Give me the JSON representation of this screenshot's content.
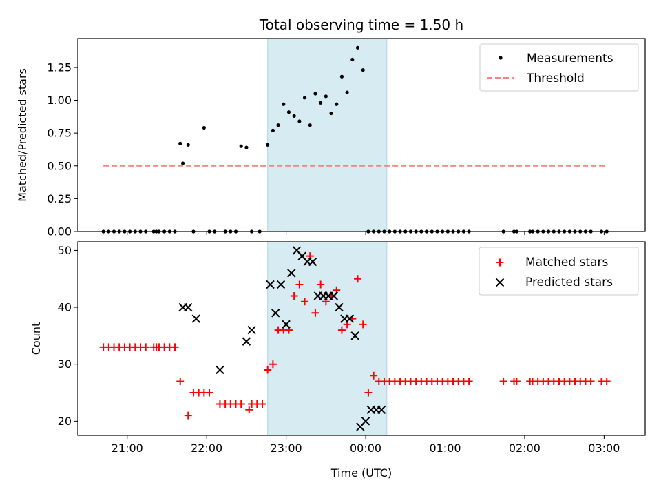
{
  "title": "Total observing time = 1.50 h",
  "xlabel": "Time (UTC)",
  "x_ticks": [
    "21:00",
    "22:00",
    "23:00",
    "00:00",
    "01:00",
    "02:00",
    "03:00"
  ],
  "colors": {
    "matched": "#ff0000",
    "predicted": "#000000",
    "threshold": "#ff7f7f",
    "span": "#add8e6"
  },
  "chart_data": [
    {
      "type": "scatter",
      "title": "Total observing time = 1.50 h",
      "ylabel": "Matched/Predicted stars",
      "ylim": [
        0,
        1.47
      ],
      "y_ticks": [
        "0.00",
        "0.25",
        "0.50",
        "0.75",
        "1.00",
        "1.25"
      ],
      "x_ticks": [
        "21:00",
        "22:00",
        "23:00",
        "00:00",
        "01:00",
        "02:00",
        "03:00"
      ],
      "highlight_span": [
        "22:46",
        "00:16"
      ],
      "legend_position": "top-right",
      "series": [
        {
          "name": "Measurements",
          "x": [
            "20:42",
            "20:46",
            "20:50",
            "20:54",
            "20:58",
            "21:02",
            "21:06",
            "21:10",
            "21:14",
            "21:20",
            "21:22",
            "21:24",
            "21:28",
            "21:32",
            "21:36",
            "21:40",
            "21:42",
            "21:46",
            "21:50",
            "21:58",
            "22:02",
            "22:06",
            "22:14",
            "22:18",
            "22:22",
            "22:26",
            "22:30",
            "22:34",
            "22:40",
            "22:46",
            "22:50",
            "22:54",
            "22:58",
            "23:02",
            "23:06",
            "23:10",
            "23:14",
            "23:18",
            "23:22",
            "23:26",
            "23:30",
            "23:34",
            "23:38",
            "23:42",
            "23:46",
            "23:50",
            "23:54",
            "23:58",
            "00:02",
            "00:06",
            "00:10",
            "00:14",
            "00:18",
            "00:22",
            "00:26",
            "00:30",
            "00:34",
            "00:38",
            "00:42",
            "00:46",
            "00:50",
            "00:54",
            "00:58",
            "01:02",
            "01:06",
            "01:10",
            "01:14",
            "01:18",
            "01:44",
            "01:52",
            "01:54",
            "02:04",
            "02:06",
            "02:10",
            "02:14",
            "02:18",
            "02:22",
            "02:26",
            "02:30",
            "02:34",
            "02:38",
            "02:42",
            "02:46",
            "02:50",
            "02:58",
            "03:02"
          ],
          "y": [
            0,
            0,
            0,
            0,
            0,
            0,
            0,
            0,
            0,
            0,
            0,
            0,
            0,
            0,
            0,
            0.67,
            0.52,
            0.66,
            0,
            0.79,
            0,
            0,
            0,
            0,
            0,
            0.65,
            0.64,
            0,
            0,
            0.66,
            0.77,
            0.81,
            0.97,
            0.91,
            0.88,
            0.84,
            1.02,
            0.81,
            1.05,
            0.98,
            1.03,
            0.9,
            0.97,
            1.18,
            1.06,
            1.31,
            1.4,
            1.23,
            0,
            0,
            0,
            0,
            0,
            0,
            0,
            0,
            0,
            0,
            0,
            0,
            0,
            0,
            0,
            0,
            0,
            0,
            0,
            0,
            0,
            0,
            0,
            0,
            0,
            0,
            0,
            0,
            0,
            0,
            0,
            0,
            0,
            0,
            0,
            0,
            0,
            0
          ]
        },
        {
          "name": "Threshold",
          "x": [
            "20:42",
            "03:02"
          ],
          "y": [
            0.5,
            0.5
          ]
        }
      ]
    },
    {
      "type": "scatter",
      "xlabel": "Time (UTC)",
      "ylabel": "Count",
      "ylim": [
        17.5,
        51.5
      ],
      "y_ticks": [
        "20",
        "30",
        "40",
        "50"
      ],
      "x_ticks": [
        "21:00",
        "22:00",
        "23:00",
        "00:00",
        "01:00",
        "02:00",
        "03:00"
      ],
      "highlight_span": [
        "22:46",
        "00:16"
      ],
      "legend_position": "top-right",
      "series": [
        {
          "name": "Matched stars",
          "x": [
            "20:42",
            "20:46",
            "20:50",
            "20:54",
            "20:58",
            "21:02",
            "21:06",
            "21:10",
            "21:14",
            "21:20",
            "21:22",
            "21:24",
            "21:28",
            "21:32",
            "21:36",
            "21:40",
            "21:46",
            "21:50",
            "21:54",
            "21:58",
            "22:02",
            "22:10",
            "22:14",
            "22:18",
            "22:22",
            "22:26",
            "22:32",
            "22:34",
            "22:38",
            "22:42",
            "22:46",
            "22:50",
            "22:54",
            "22:58",
            "23:02",
            "23:06",
            "23:10",
            "23:14",
            "23:18",
            "23:22",
            "23:26",
            "23:30",
            "23:34",
            "23:38",
            "23:42",
            "23:46",
            "23:50",
            "23:54",
            "23:58",
            "00:02",
            "00:06",
            "00:10",
            "00:14",
            "00:18",
            "00:22",
            "00:26",
            "00:30",
            "00:34",
            "00:38",
            "00:42",
            "00:46",
            "00:50",
            "00:54",
            "00:58",
            "01:02",
            "01:06",
            "01:10",
            "01:14",
            "01:18",
            "01:44",
            "01:52",
            "01:54",
            "02:04",
            "02:06",
            "02:10",
            "02:14",
            "02:18",
            "02:22",
            "02:26",
            "02:30",
            "02:34",
            "02:38",
            "02:42",
            "02:46",
            "02:50",
            "02:58",
            "03:02"
          ],
          "y": [
            33,
            33,
            33,
            33,
            33,
            33,
            33,
            33,
            33,
            33,
            33,
            33,
            33,
            33,
            33,
            27,
            21,
            25,
            25,
            25,
            25,
            23,
            23,
            23,
            23,
            23,
            22,
            23,
            23,
            23,
            29,
            30,
            36,
            36,
            36,
            42,
            44,
            41,
            49,
            39,
            44,
            41,
            42,
            43,
            36,
            37,
            38,
            45,
            37,
            25,
            28,
            27,
            27,
            27,
            27,
            27,
            27,
            27,
            27,
            27,
            27,
            27,
            27,
            27,
            27,
            27,
            27,
            27,
            27,
            27,
            27,
            27,
            27,
            27,
            27,
            27,
            27,
            27,
            27,
            27,
            27,
            27,
            27,
            27,
            27,
            27,
            27
          ]
        },
        {
          "name": "Predicted stars",
          "x": [
            "21:42",
            "21:46",
            "21:52",
            "22:10",
            "22:30",
            "22:34",
            "22:48",
            "22:52",
            "22:56",
            "23:00",
            "23:04",
            "23:08",
            "23:12",
            "23:16",
            "23:20",
            "23:24",
            "23:28",
            "23:32",
            "23:36",
            "23:40",
            "23:44",
            "23:48",
            "23:52",
            "23:56",
            "00:00",
            "00:04",
            "00:08",
            "00:12"
          ],
          "y": [
            40,
            40,
            38,
            29,
            34,
            36,
            44,
            39,
            44,
            37,
            46,
            50,
            49,
            48,
            48,
            42,
            42,
            42,
            42,
            40,
            38,
            38,
            35,
            19,
            20,
            22,
            22,
            22
          ]
        }
      ]
    }
  ]
}
